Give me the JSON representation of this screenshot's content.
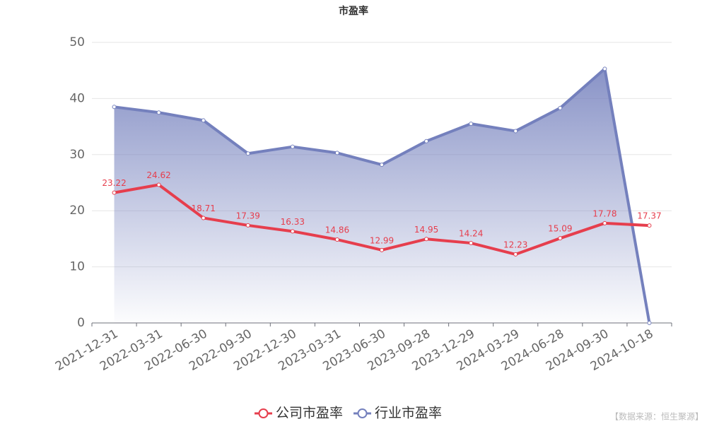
{
  "chart_data": {
    "type": "line",
    "title": "市盈率",
    "categories": [
      "2021-12-31",
      "2022-03-31",
      "2022-06-30",
      "2022-09-30",
      "2022-12-30",
      "2023-03-31",
      "2023-06-30",
      "2023-09-28",
      "2023-12-29",
      "2024-03-29",
      "2024-06-28",
      "2024-09-30",
      "2024-10-18"
    ],
    "series": [
      {
        "name": "公司市盈率",
        "color": "#e63e4d",
        "show_labels": true,
        "values": [
          23.22,
          24.62,
          18.71,
          17.39,
          16.33,
          14.86,
          12.99,
          14.95,
          14.24,
          12.23,
          15.09,
          17.78,
          17.37
        ]
      },
      {
        "name": "行业市盈率",
        "color": "#7480bd",
        "area": true,
        "values": [
          38.5,
          37.5,
          36.1,
          30.2,
          31.4,
          30.3,
          28.2,
          32.4,
          35.5,
          34.2,
          38.3,
          45.3,
          0
        ]
      }
    ],
    "ylim": [
      0,
      50
    ],
    "yticks": [
      0,
      10,
      20,
      30,
      40,
      50
    ],
    "grid": true,
    "source": "【数据来源：恒生聚源】"
  }
}
